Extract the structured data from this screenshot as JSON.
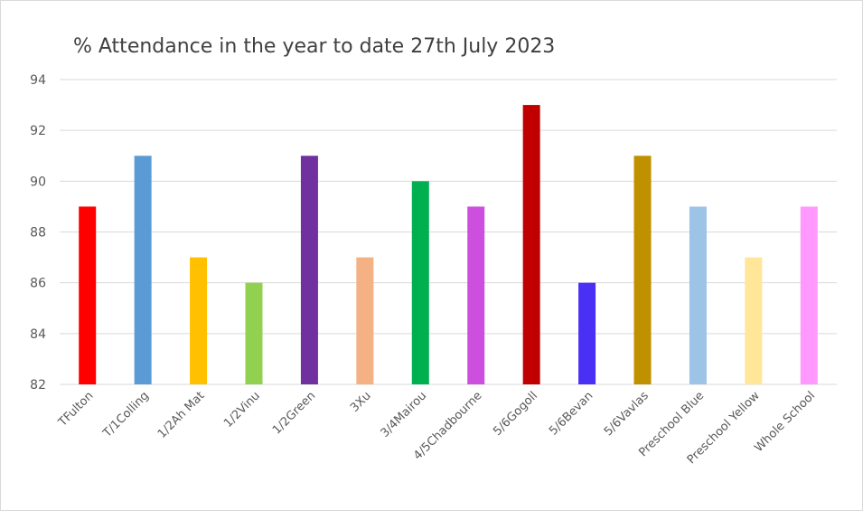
{
  "chart_data": {
    "type": "bar",
    "title": "% Attendance in the year to date 27th July 2023",
    "xlabel": "",
    "ylabel": "",
    "ylim": [
      82,
      94
    ],
    "yticks": [
      82,
      84,
      86,
      88,
      90,
      92,
      94
    ],
    "grid": true,
    "legend": "none",
    "categories": [
      "TFulton",
      "T/1Colling",
      "1/2Ah Mat",
      "1/2Vinu",
      "1/2Green",
      "3Xu",
      "3/4Mairou",
      "4/5Chadbourne",
      "5/6Gogoll",
      "5/6Bevan",
      "5/6Vavlas",
      "Preschool Blue",
      "Preschool Yellow",
      "Whole School"
    ],
    "values": [
      89,
      91,
      87,
      86,
      91,
      87,
      90,
      89,
      93,
      86,
      91,
      89,
      87,
      89
    ],
    "colors": [
      "#ff0000",
      "#5b9bd5",
      "#ffc000",
      "#92d050",
      "#7030a0",
      "#f4b183",
      "#00b050",
      "#cc4fdd",
      "#c00000",
      "#4a2ff5",
      "#bf9000",
      "#9dc3e6",
      "#ffe699",
      "#ff99ff"
    ]
  }
}
